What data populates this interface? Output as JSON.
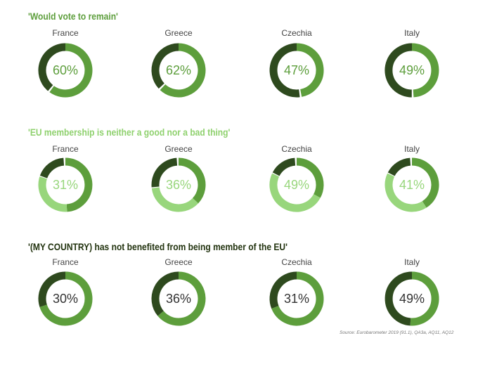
{
  "colors": {
    "dark": "#2e4a1e",
    "mid": "#5d9e3c",
    "light": "#98d67c",
    "title_dark": "#22330f",
    "pct_dark": "#333333"
  },
  "chart_data": [
    {
      "type": "pie",
      "title": "'Would vote to remain'",
      "title_color": "#5d9e3c",
      "pct_color": "#5d9e3c",
      "segments": [
        "value",
        "rest"
      ],
      "categories": [
        {
          "country": "France",
          "value": 60,
          "label": "60%"
        },
        {
          "country": "Greece",
          "value": 62,
          "label": "62%"
        },
        {
          "country": "Czechia",
          "value": 47,
          "label": "47%"
        },
        {
          "country": "Italy",
          "value": 49,
          "label": "49%"
        }
      ]
    },
    {
      "type": "pie",
      "title": "'EU membership is neither a good nor a bad thing'",
      "title_color": "#8fd16e",
      "pct_color": "#98d67c",
      "segments": [
        "good",
        "value",
        "bad"
      ],
      "categories": [
        {
          "country": "France",
          "value": 31,
          "label": "31%",
          "good": 49,
          "bad": 20
        },
        {
          "country": "Greece",
          "value": 36,
          "label": "36%",
          "good": 37,
          "bad": 27
        },
        {
          "country": "Czechia",
          "value": 49,
          "label": "49%",
          "good": 33,
          "bad": 18
        },
        {
          "country": "Italy",
          "value": 41,
          "label": "41%",
          "good": 41,
          "bad": 18
        }
      ]
    },
    {
      "type": "pie",
      "title": "'(MY COUNTRY) has not benefited from being member of the EU'",
      "title_color": "#22330f",
      "pct_color": "#333333",
      "segments": [
        "rest",
        "value"
      ],
      "categories": [
        {
          "country": "France",
          "value": 30,
          "label": "30%"
        },
        {
          "country": "Greece",
          "value": 36,
          "label": "36%"
        },
        {
          "country": "Czechia",
          "value": 31,
          "label": "31%"
        },
        {
          "country": "Italy",
          "value": 49,
          "label": "49%"
        }
      ]
    }
  ],
  "source": "Source: Eurobarometer 2019 (91.1), QA3a, AQ11, AQ12"
}
